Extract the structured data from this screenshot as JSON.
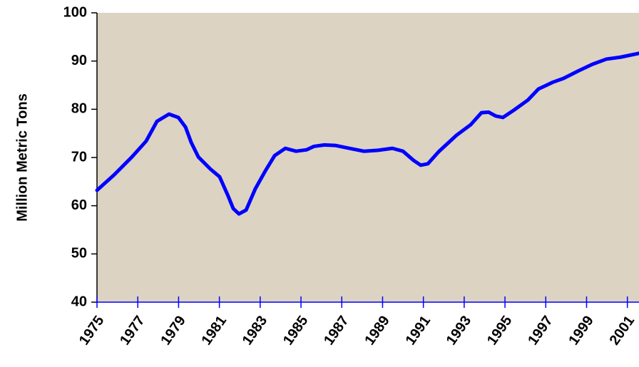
{
  "chart_data": {
    "type": "line",
    "y_label": "Million Metric Tons",
    "x": [
      1975.0,
      1975.84,
      1976.71,
      1977.41,
      1977.94,
      1978.53,
      1978.99,
      1979.34,
      1979.62,
      1979.97,
      1980.56,
      1981.01,
      1981.43,
      1981.68,
      1981.96,
      1982.31,
      1982.76,
      1983.25,
      1983.71,
      1984.23,
      1984.76,
      1985.28,
      1985.63,
      1986.15,
      1986.68,
      1987.38,
      1988.08,
      1988.78,
      1989.48,
      1990.0,
      1990.52,
      1990.87,
      1991.22,
      1991.75,
      1992.62,
      1993.32,
      1993.85,
      1994.2,
      1994.55,
      1994.9,
      1995.43,
      1996.12,
      1996.64,
      1997.34,
      1997.87,
      1998.57,
      1999.27,
      1999.97,
      2000.66,
      2001.57
    ],
    "series": [
      {
        "color": "#0000ff",
        "values": [
          63.2,
          66.4,
          70.1,
          73.4,
          77.5,
          79.0,
          78.3,
          76.3,
          73.1,
          70.1,
          67.6,
          66.0,
          62.0,
          59.4,
          58.3,
          59.1,
          63.5,
          67.2,
          70.4,
          71.9,
          71.3,
          71.6,
          72.3,
          72.6,
          72.5,
          71.9,
          71.3,
          71.5,
          71.9,
          71.3,
          69.4,
          68.4,
          68.7,
          71.2,
          74.6,
          76.8,
          79.3,
          79.4,
          78.6,
          78.3,
          79.8,
          81.9,
          84.2,
          85.6,
          86.4,
          87.9,
          89.3,
          90.4,
          90.8,
          91.6
        ]
      }
    ],
    "xlim": [
      1975,
      2001.57
    ],
    "xticks": [
      1975,
      1977,
      1979,
      1981,
      1983,
      1985,
      1987,
      1989,
      1991,
      1993,
      1995,
      1997,
      1999,
      2001
    ],
    "ylim": [
      40,
      100
    ],
    "yticks": [
      40,
      50,
      60,
      70,
      80,
      90,
      100
    ],
    "background": "#ddd3c3"
  }
}
